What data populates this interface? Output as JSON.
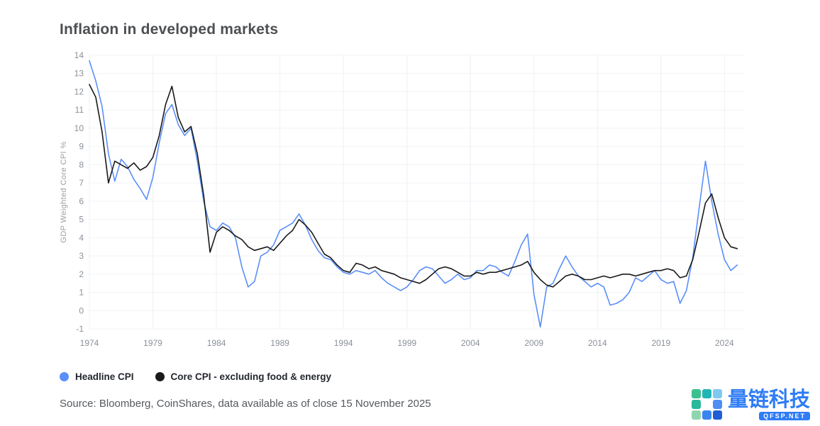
{
  "title": "Inflation in developed markets",
  "legend": {
    "items": [
      {
        "label": "Headline CPI",
        "color": "#5b8ff9"
      },
      {
        "label": "Core CPI - excluding food & energy",
        "color": "#1a1a1a"
      }
    ]
  },
  "source": "Source: Bloomberg, CoinShares, data available as of close 15 November 2025",
  "watermark": {
    "brand": "量链科技",
    "subtext": "QFSP.NET",
    "color": "#2e7cf6",
    "logo_colors": [
      "#3cc08e",
      "#21b5b8",
      "#7fc9f0",
      "#2bb89b",
      "#ffffff",
      "#4f8df5",
      "#8fd6b0",
      "#3a86f0",
      "#1e5fd6"
    ]
  },
  "chart_data": {
    "type": "line",
    "title": "Inflation in developed markets",
    "xlabel": "",
    "ylabel": "GDP Weighted Core CPI %",
    "ylim": [
      -1,
      14
    ],
    "x_range": [
      1974,
      2025.6
    ],
    "x_start": 1974,
    "x_step": 0.5,
    "x_ticks": [
      1974,
      1979,
      1984,
      1989,
      1994,
      1999,
      2004,
      2009,
      2014,
      2019,
      2024
    ],
    "y_ticks": [
      -1,
      0,
      1,
      2,
      3,
      4,
      5,
      6,
      7,
      8,
      9,
      10,
      11,
      12,
      13,
      14
    ],
    "grid": true,
    "legend_position": "bottom-left",
    "series": [
      {
        "name": "Headline CPI",
        "color": "#5b8ff9",
        "values": [
          13.7,
          12.6,
          11.2,
          8.6,
          7.1,
          8.3,
          7.9,
          7.2,
          6.7,
          6.1,
          7.3,
          9.2,
          10.8,
          11.3,
          10.2,
          9.6,
          10.0,
          8.2,
          6.0,
          4.6,
          4.4,
          4.8,
          4.6,
          4.0,
          2.4,
          1.3,
          1.6,
          3.0,
          3.2,
          3.6,
          4.4,
          4.6,
          4.8,
          5.3,
          4.7,
          3.9,
          3.3,
          2.9,
          2.8,
          2.4,
          2.1,
          2.0,
          2.2,
          2.1,
          2.0,
          2.2,
          1.8,
          1.5,
          1.3,
          1.1,
          1.3,
          1.7,
          2.2,
          2.4,
          2.3,
          1.9,
          1.5,
          1.7,
          2.0,
          1.7,
          1.8,
          2.2,
          2.2,
          2.5,
          2.4,
          2.1,
          1.9,
          2.7,
          3.6,
          4.2,
          0.9,
          -0.9,
          1.3,
          1.5,
          2.3,
          3.0,
          2.4,
          1.9,
          1.6,
          1.3,
          1.5,
          1.3,
          0.3,
          0.4,
          0.6,
          1.0,
          1.8,
          1.6,
          1.9,
          2.2,
          1.7,
          1.5,
          1.6,
          0.4,
          1.1,
          2.9,
          5.6,
          8.2,
          6.0,
          4.2,
          2.8,
          2.2,
          2.5
        ]
      },
      {
        "name": "Core CPI - excluding food & energy",
        "color": "#1a1a1a",
        "values": [
          12.4,
          11.7,
          9.8,
          7.0,
          8.2,
          8.0,
          7.8,
          8.1,
          7.7,
          7.9,
          8.4,
          9.6,
          11.3,
          12.3,
          10.6,
          9.8,
          10.1,
          8.6,
          6.3,
          3.2,
          4.3,
          4.6,
          4.4,
          4.1,
          3.9,
          3.5,
          3.3,
          3.4,
          3.5,
          3.3,
          3.7,
          4.1,
          4.4,
          5.0,
          4.7,
          4.3,
          3.7,
          3.1,
          2.9,
          2.5,
          2.2,
          2.1,
          2.6,
          2.5,
          2.3,
          2.4,
          2.2,
          2.1,
          2.0,
          1.8,
          1.7,
          1.6,
          1.5,
          1.7,
          2.0,
          2.3,
          2.4,
          2.3,
          2.1,
          1.9,
          1.9,
          2.1,
          2.0,
          2.1,
          2.1,
          2.2,
          2.3,
          2.4,
          2.5,
          2.7,
          2.1,
          1.7,
          1.4,
          1.3,
          1.6,
          1.9,
          2.0,
          1.9,
          1.7,
          1.7,
          1.8,
          1.9,
          1.8,
          1.9,
          2.0,
          2.0,
          1.9,
          2.0,
          2.1,
          2.2,
          2.2,
          2.3,
          2.2,
          1.8,
          1.9,
          2.8,
          4.3,
          5.9,
          6.4,
          5.1,
          4.0,
          3.5,
          3.4
        ]
      }
    ]
  }
}
